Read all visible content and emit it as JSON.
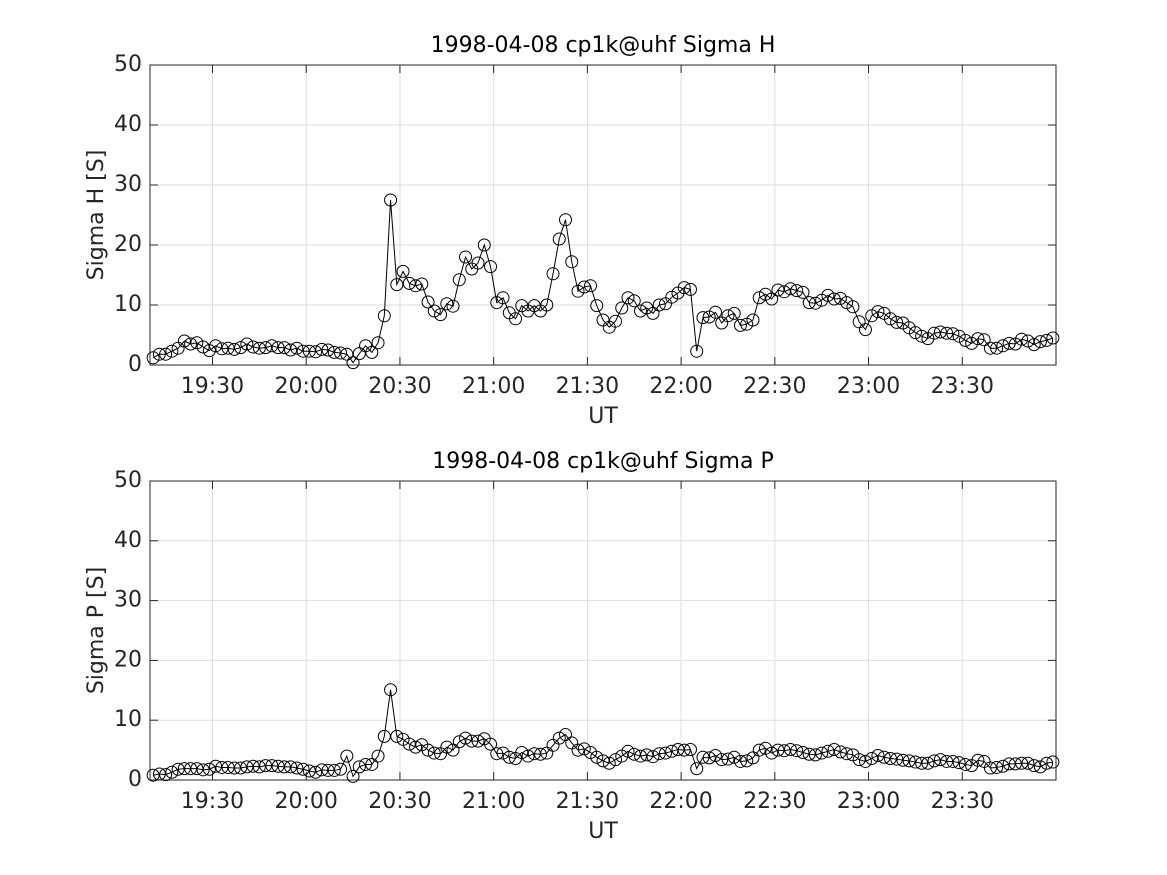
{
  "chart_data": [
    {
      "type": "line",
      "title": "1998-04-08  cp1k@uhf Sigma H",
      "xlabel": "UT",
      "ylabel": "Sigma H [S]",
      "color": "#000000",
      "grid": true,
      "xlim": [
        1150,
        1440
      ],
      "ylim": [
        0,
        50
      ],
      "xticks": [
        {
          "value": 1170,
          "label": "19:30"
        },
        {
          "value": 1200,
          "label": "20:00"
        },
        {
          "value": 1230,
          "label": "20:30"
        },
        {
          "value": 1260,
          "label": "21:00"
        },
        {
          "value": 1290,
          "label": "21:30"
        },
        {
          "value": 1320,
          "label": "22:00"
        },
        {
          "value": 1350,
          "label": "22:30"
        },
        {
          "value": 1380,
          "label": "23:00"
        },
        {
          "value": 1410,
          "label": "23:30"
        }
      ],
      "yticks": [
        0,
        10,
        20,
        30,
        40,
        50
      ],
      "x": [
        1151,
        1153,
        1155,
        1157,
        1159,
        1161,
        1163,
        1165,
        1167,
        1169,
        1171,
        1173,
        1175,
        1177,
        1179,
        1181,
        1183,
        1185,
        1187,
        1189,
        1191,
        1193,
        1195,
        1197,
        1199,
        1201,
        1203,
        1205,
        1207,
        1209,
        1211,
        1213,
        1215,
        1217,
        1219,
        1221,
        1223,
        1225,
        1227,
        1229,
        1231,
        1233,
        1235,
        1237,
        1239,
        1241,
        1243,
        1245,
        1247,
        1249,
        1251,
        1253,
        1255,
        1257,
        1259,
        1261,
        1263,
        1265,
        1267,
        1269,
        1271,
        1273,
        1275,
        1277,
        1279,
        1281,
        1283,
        1285,
        1287,
        1289,
        1291,
        1293,
        1295,
        1297,
        1299,
        1301,
        1303,
        1305,
        1307,
        1309,
        1311,
        1313,
        1315,
        1317,
        1319,
        1321,
        1323,
        1325,
        1327,
        1329,
        1331,
        1333,
        1335,
        1337,
        1339,
        1341,
        1343,
        1345,
        1347,
        1349,
        1351,
        1353,
        1355,
        1357,
        1359,
        1361,
        1363,
        1365,
        1367,
        1369,
        1371,
        1373,
        1375,
        1377,
        1379,
        1381,
        1383,
        1385,
        1387,
        1389,
        1391,
        1393,
        1395,
        1397,
        1399,
        1401,
        1403,
        1405,
        1407,
        1409,
        1411,
        1413,
        1415,
        1417,
        1419,
        1421,
        1423,
        1425,
        1427,
        1429,
        1431,
        1433,
        1435,
        1437,
        1439
      ],
      "values": [
        1.2,
        1.8,
        1.8,
        2.3,
        2.8,
        4.0,
        3.5,
        3.7,
        3.0,
        2.4,
        3.2,
        2.7,
        2.8,
        2.6,
        2.9,
        3.5,
        3.0,
        2.8,
        2.9,
        3.2,
        2.9,
        2.9,
        2.5,
        2.8,
        2.3,
        2.3,
        2.2,
        2.6,
        2.5,
        2.1,
        2.0,
        1.8,
        0.4,
        1.9,
        3.2,
        2.1,
        3.7,
        8.2,
        27.5,
        13.4,
        15.6,
        13.6,
        13.2,
        13.5,
        10.5,
        9.0,
        8.4,
        10.2,
        9.8,
        14.2,
        18.0,
        16.0,
        17.0,
        20.0,
        16.4,
        10.4,
        11.2,
        8.7,
        7.7,
        9.9,
        9.0,
        9.9,
        9.0,
        10.0,
        15.2,
        21.0,
        24.2,
        17.2,
        12.3,
        13.0,
        13.2,
        9.9,
        7.5,
        6.3,
        7.3,
        9.5,
        11.2,
        10.7,
        9.0,
        9.5,
        8.6,
        10.0,
        10.2,
        11.3,
        12.0,
        12.9,
        12.6,
        2.3,
        7.9,
        8.0,
        8.8,
        7.0,
        8.2,
        8.6,
        6.6,
        6.8,
        7.5,
        11.2,
        11.8,
        11.0,
        12.5,
        12.2,
        12.7,
        12.4,
        12.1,
        10.4,
        10.3,
        10.8,
        11.6,
        11.0,
        11.1,
        10.4,
        9.7,
        7.2,
        5.9,
        8.2,
        8.9,
        8.6,
        7.7,
        7.1,
        7.0,
        6.2,
        5.4,
        4.8,
        4.4,
        5.3,
        5.5,
        5.3,
        5.2,
        4.8,
        4.1,
        3.6,
        4.4,
        4.2,
        2.8,
        2.8,
        3.2,
        3.6,
        3.5,
        4.3,
        4.0,
        3.4,
        3.9,
        4.1,
        4.5
      ]
    },
    {
      "type": "line",
      "title": "1998-04-08  cp1k@uhf Sigma P",
      "xlabel": "UT",
      "ylabel": "Sigma P [S]",
      "color": "#000000",
      "grid": true,
      "xlim": [
        1150,
        1440
      ],
      "ylim": [
        0,
        50
      ],
      "xticks": [
        {
          "value": 1170,
          "label": "19:30"
        },
        {
          "value": 1200,
          "label": "20:00"
        },
        {
          "value": 1230,
          "label": "20:30"
        },
        {
          "value": 1260,
          "label": "21:00"
        },
        {
          "value": 1290,
          "label": "21:30"
        },
        {
          "value": 1320,
          "label": "22:00"
        },
        {
          "value": 1350,
          "label": "22:30"
        },
        {
          "value": 1380,
          "label": "23:00"
        },
        {
          "value": 1410,
          "label": "23:30"
        }
      ],
      "yticks": [
        0,
        10,
        20,
        30,
        40,
        50
      ],
      "x": [
        1151,
        1153,
        1155,
        1157,
        1159,
        1161,
        1163,
        1165,
        1167,
        1169,
        1171,
        1173,
        1175,
        1177,
        1179,
        1181,
        1183,
        1185,
        1187,
        1189,
        1191,
        1193,
        1195,
        1197,
        1199,
        1201,
        1203,
        1205,
        1207,
        1209,
        1211,
        1213,
        1215,
        1217,
        1219,
        1221,
        1223,
        1225,
        1227,
        1229,
        1231,
        1233,
        1235,
        1237,
        1239,
        1241,
        1243,
        1245,
        1247,
        1249,
        1251,
        1253,
        1255,
        1257,
        1259,
        1261,
        1263,
        1265,
        1267,
        1269,
        1271,
        1273,
        1275,
        1277,
        1279,
        1281,
        1283,
        1285,
        1287,
        1289,
        1291,
        1293,
        1295,
        1297,
        1299,
        1301,
        1303,
        1305,
        1307,
        1309,
        1311,
        1313,
        1315,
        1317,
        1319,
        1321,
        1323,
        1325,
        1327,
        1329,
        1331,
        1333,
        1335,
        1337,
        1339,
        1341,
        1343,
        1345,
        1347,
        1349,
        1351,
        1353,
        1355,
        1357,
        1359,
        1361,
        1363,
        1365,
        1367,
        1369,
        1371,
        1373,
        1375,
        1377,
        1379,
        1381,
        1383,
        1385,
        1387,
        1389,
        1391,
        1393,
        1395,
        1397,
        1399,
        1401,
        1403,
        1405,
        1407,
        1409,
        1411,
        1413,
        1415,
        1417,
        1419,
        1421,
        1423,
        1425,
        1427,
        1429,
        1431,
        1433,
        1435,
        1437,
        1439
      ],
      "values": [
        0.8,
        1.0,
        0.9,
        1.3,
        1.8,
        1.9,
        1.9,
        1.9,
        1.7,
        1.8,
        2.3,
        2.1,
        2.1,
        2.0,
        2.0,
        2.2,
        2.3,
        2.2,
        2.4,
        2.4,
        2.3,
        2.2,
        2.2,
        2.0,
        1.8,
        1.5,
        1.3,
        1.7,
        1.6,
        1.6,
        1.8,
        4.0,
        0.6,
        2.2,
        2.6,
        2.6,
        4.0,
        7.3,
        15.1,
        7.3,
        6.8,
        6.0,
        5.5,
        5.9,
        5.0,
        4.5,
        4.4,
        5.5,
        5.0,
        6.4,
        7.0,
        6.5,
        6.5,
        6.9,
        6.0,
        4.4,
        4.5,
        3.8,
        3.6,
        4.6,
        4.0,
        4.4,
        4.3,
        4.5,
        5.8,
        7.0,
        7.6,
        6.2,
        5.0,
        5.2,
        4.6,
        3.8,
        3.2,
        2.8,
        3.4,
        4.0,
        4.8,
        4.3,
        4.0,
        4.2,
        3.9,
        4.4,
        4.5,
        4.8,
        5.1,
        5.0,
        5.1,
        1.9,
        3.8,
        3.7,
        4.1,
        3.4,
        3.5,
        3.8,
        3.1,
        3.2,
        3.7,
        5.0,
        5.3,
        4.5,
        5.0,
        4.9,
        5.1,
        4.9,
        4.6,
        4.3,
        4.2,
        4.5,
        4.8,
        5.1,
        4.7,
        4.4,
        4.2,
        3.4,
        3.1,
        3.6,
        4.1,
        3.8,
        3.6,
        3.5,
        3.3,
        3.2,
        3.0,
        2.8,
        2.8,
        3.2,
        3.4,
        3.1,
        3.1,
        2.9,
        2.6,
        2.4,
        3.3,
        3.1,
        2.0,
        2.1,
        2.3,
        2.7,
        2.7,
        2.8,
        2.8,
        2.4,
        2.2,
        2.8,
        3.0
      ]
    }
  ]
}
